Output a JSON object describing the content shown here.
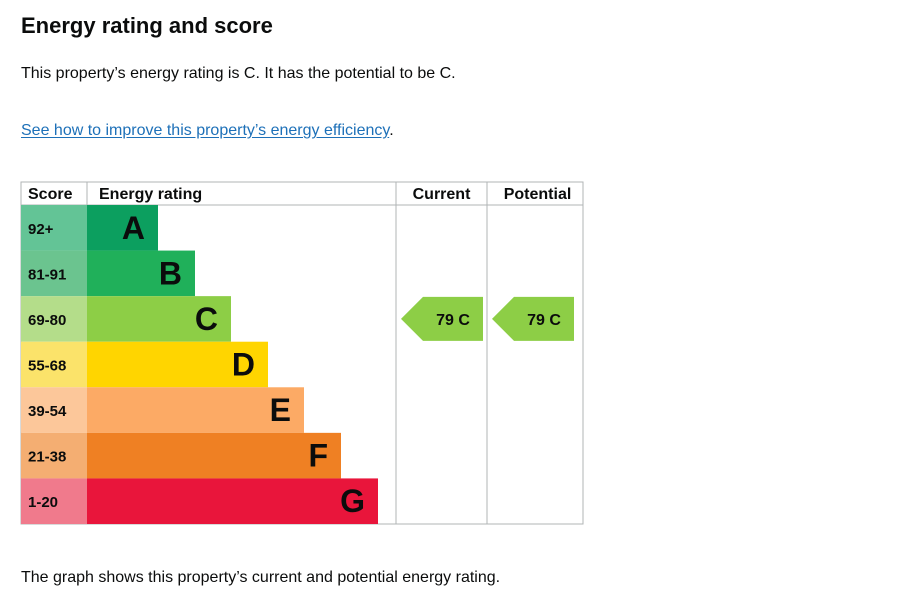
{
  "heading": "Energy rating and score",
  "summary": "This property’s energy rating is C. It has the potential to be C.",
  "improve_link": "See how to improve this property’s energy efficiency",
  "improve_link_suffix": ".",
  "caption": "The graph shows this property’s current and potential energy rating.",
  "chart_data": {
    "type": "bar",
    "headers": {
      "score": "Score",
      "rating": "Energy rating",
      "current": "Current",
      "potential": "Potential"
    },
    "bands": [
      {
        "score": "92+",
        "letter": "A",
        "color": "#0c9f5f",
        "score_bg": "#63c496"
      },
      {
        "score": "81-91",
        "letter": "B",
        "color": "#20b05a",
        "score_bg": "#6bc48f"
      },
      {
        "score": "69-80",
        "letter": "C",
        "color": "#8dce46",
        "score_bg": "#b4dd8a"
      },
      {
        "score": "55-68",
        "letter": "D",
        "color": "#ffd500",
        "score_bg": "#fbe36a"
      },
      {
        "score": "39-54",
        "letter": "E",
        "color": "#fcaa65",
        "score_bg": "#fcc79a"
      },
      {
        "score": "21-38",
        "letter": "F",
        "color": "#ef8023",
        "score_bg": "#f4ae72"
      },
      {
        "score": "1-20",
        "letter": "G",
        "color": "#e9153b",
        "score_bg": "#f07a8c"
      }
    ],
    "current": {
      "value": 79,
      "letter": "C",
      "label": "79  C",
      "color": "#8dce46"
    },
    "potential": {
      "value": 79,
      "letter": "C",
      "label": "79  C",
      "color": "#8dce46"
    }
  }
}
